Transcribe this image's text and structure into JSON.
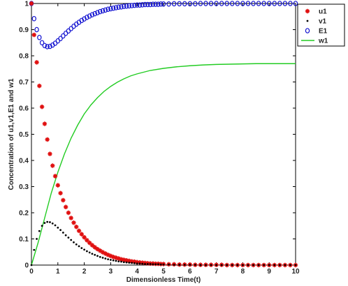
{
  "chart_data": {
    "type": "scatter",
    "xlabel": "Dimensionless Time(t)",
    "ylabel": "Concentration of u1,v1,E1 and w1",
    "xlim": [
      0,
      10
    ],
    "ylim": [
      0,
      1
    ],
    "xticks": [
      "0",
      "1",
      "2",
      "3",
      "4",
      "5",
      "6",
      "7",
      "8",
      "9",
      "10"
    ],
    "yticks": [
      "0",
      "0.1",
      "0.2",
      "0.3",
      "0.4",
      "0.5",
      "0.6",
      "0.7",
      "0.8",
      "0.9",
      "1"
    ],
    "grid": false,
    "legend_position": "top-right",
    "series": [
      {
        "name": "u1",
        "marker": "star",
        "color": "#e01010",
        "x": [
          0,
          0.1,
          0.2,
          0.3,
          0.4,
          0.5,
          0.6,
          0.7,
          0.8,
          0.9,
          1.0,
          1.1,
          1.2,
          1.3,
          1.4,
          1.5,
          1.6,
          1.7,
          1.8,
          1.9,
          2.0,
          2.1,
          2.2,
          2.3,
          2.4,
          2.5,
          2.6,
          2.7,
          2.8,
          2.9,
          3.0,
          3.1,
          3.2,
          3.3,
          3.4,
          3.5,
          3.6,
          3.7,
          3.8,
          3.9,
          4.0,
          4.1,
          4.2,
          4.3,
          4.4,
          4.5,
          4.6,
          4.7,
          4.8,
          4.9,
          5.0,
          5.2,
          5.4,
          5.6,
          5.8,
          6.0,
          6.2,
          6.4,
          6.6,
          6.8,
          7.0,
          7.2,
          7.4,
          7.6,
          7.8,
          8.0,
          8.2,
          8.4,
          8.6,
          8.8,
          9.0,
          9.2,
          9.4,
          9.6,
          9.8,
          10.0
        ],
        "y": [
          1.0,
          0.88,
          0.775,
          0.685,
          0.605,
          0.54,
          0.48,
          0.425,
          0.38,
          0.34,
          0.305,
          0.275,
          0.248,
          0.222,
          0.2,
          0.18,
          0.162,
          0.146,
          0.131,
          0.118,
          0.106,
          0.095,
          0.085,
          0.076,
          0.068,
          0.061,
          0.055,
          0.049,
          0.044,
          0.039,
          0.035,
          0.031,
          0.028,
          0.025,
          0.022,
          0.02,
          0.018,
          0.016,
          0.014,
          0.013,
          0.011,
          0.01,
          0.009,
          0.008,
          0.007,
          0.006,
          0.006,
          0.005,
          0.005,
          0.004,
          0.004,
          0.003,
          0.003,
          0.002,
          0.002,
          0.002,
          0.001,
          0.001,
          0.001,
          0.001,
          0.001,
          0.001,
          0.0,
          0.0,
          0.0,
          0.0,
          0.0,
          0.0,
          0.0,
          0.0,
          0.0,
          0.0,
          0.0,
          0.0,
          0.0,
          0.0
        ]
      },
      {
        "name": "v1",
        "marker": "dot",
        "color": "#000000",
        "x": [
          0,
          0.1,
          0.2,
          0.3,
          0.4,
          0.5,
          0.6,
          0.7,
          0.8,
          0.9,
          1.0,
          1.1,
          1.2,
          1.3,
          1.4,
          1.5,
          1.6,
          1.7,
          1.8,
          1.9,
          2.0,
          2.1,
          2.2,
          2.3,
          2.4,
          2.5,
          2.6,
          2.7,
          2.8,
          2.9,
          3.0,
          3.1,
          3.2,
          3.3,
          3.4,
          3.5,
          3.6,
          3.7,
          3.8,
          3.9,
          4.0,
          4.1,
          4.2,
          4.3,
          4.4,
          4.5,
          4.6,
          4.7,
          4.8,
          4.9,
          5.0,
          5.2,
          5.4,
          5.6,
          5.8,
          6.0,
          6.2,
          6.4,
          6.6,
          6.8,
          7.0,
          7.2,
          7.4,
          7.6,
          7.8,
          8.0,
          8.2,
          8.4,
          8.6,
          8.8,
          9.0,
          9.2,
          9.4,
          9.6,
          9.8,
          10.0
        ],
        "y": [
          0.0,
          0.058,
          0.1,
          0.13,
          0.15,
          0.161,
          0.165,
          0.164,
          0.159,
          0.152,
          0.143,
          0.134,
          0.124,
          0.114,
          0.105,
          0.096,
          0.087,
          0.079,
          0.072,
          0.065,
          0.059,
          0.053,
          0.048,
          0.043,
          0.039,
          0.035,
          0.031,
          0.028,
          0.025,
          0.022,
          0.02,
          0.018,
          0.016,
          0.014,
          0.013,
          0.011,
          0.01,
          0.009,
          0.008,
          0.007,
          0.006,
          0.006,
          0.005,
          0.004,
          0.004,
          0.004,
          0.003,
          0.003,
          0.003,
          0.002,
          0.002,
          0.002,
          0.001,
          0.001,
          0.001,
          0.001,
          0.001,
          0.0,
          0.0,
          0.0,
          0.0,
          0.0,
          0.0,
          0.0,
          0.0,
          0.0,
          0.0,
          0.0,
          0.0,
          0.0,
          0.0,
          0.0,
          0.0,
          0.0,
          0.0,
          0.0
        ]
      },
      {
        "name": "E1",
        "marker": "circle",
        "color": "#1010d0",
        "x": [
          0,
          0.1,
          0.2,
          0.3,
          0.4,
          0.5,
          0.6,
          0.7,
          0.8,
          0.9,
          1.0,
          1.1,
          1.2,
          1.3,
          1.4,
          1.5,
          1.6,
          1.7,
          1.8,
          1.9,
          2.0,
          2.1,
          2.2,
          2.3,
          2.4,
          2.5,
          2.6,
          2.7,
          2.8,
          2.9,
          3.0,
          3.1,
          3.2,
          3.3,
          3.4,
          3.5,
          3.6,
          3.7,
          3.8,
          3.9,
          4.0,
          4.1,
          4.2,
          4.3,
          4.4,
          4.5,
          4.6,
          4.7,
          4.8,
          4.9,
          5.0,
          5.2,
          5.4,
          5.6,
          5.8,
          6.0,
          6.2,
          6.4,
          6.6,
          6.8,
          7.0,
          7.2,
          7.4,
          7.6,
          7.8,
          8.0,
          8.2,
          8.4,
          8.6,
          8.8,
          9.0,
          9.2,
          9.4,
          9.6,
          9.8,
          10.0
        ],
        "y": [
          1.0,
          0.942,
          0.9,
          0.87,
          0.85,
          0.839,
          0.835,
          0.836,
          0.841,
          0.848,
          0.857,
          0.866,
          0.876,
          0.886,
          0.895,
          0.904,
          0.913,
          0.921,
          0.928,
          0.935,
          0.941,
          0.947,
          0.952,
          0.957,
          0.961,
          0.965,
          0.969,
          0.972,
          0.975,
          0.978,
          0.98,
          0.982,
          0.984,
          0.986,
          0.987,
          0.989,
          0.99,
          0.991,
          0.992,
          0.993,
          0.994,
          0.994,
          0.995,
          0.996,
          0.996,
          0.996,
          0.997,
          0.997,
          0.997,
          0.998,
          0.998,
          0.998,
          0.999,
          0.999,
          0.999,
          0.999,
          0.999,
          1.0,
          1.0,
          1.0,
          1.0,
          1.0,
          1.0,
          1.0,
          1.0,
          1.0,
          1.0,
          1.0,
          1.0,
          1.0,
          1.0,
          1.0,
          1.0,
          1.0,
          1.0,
          1.0
        ]
      },
      {
        "name": "w1",
        "marker": "line",
        "color": "#22cc22",
        "x": [
          0,
          0.25,
          0.5,
          0.75,
          1.0,
          1.25,
          1.5,
          1.75,
          2.0,
          2.25,
          2.5,
          2.75,
          3.0,
          3.25,
          3.5,
          3.75,
          4.0,
          4.5,
          5.0,
          5.5,
          6.0,
          6.5,
          7.0,
          7.5,
          8.0,
          8.5,
          9.0,
          9.5,
          10.0
        ],
        "y": [
          0.0,
          0.085,
          0.18,
          0.275,
          0.355,
          0.425,
          0.485,
          0.535,
          0.578,
          0.612,
          0.64,
          0.664,
          0.683,
          0.699,
          0.712,
          0.723,
          0.731,
          0.744,
          0.752,
          0.758,
          0.762,
          0.765,
          0.767,
          0.768,
          0.769,
          0.77,
          0.77,
          0.77,
          0.77
        ]
      }
    ]
  }
}
